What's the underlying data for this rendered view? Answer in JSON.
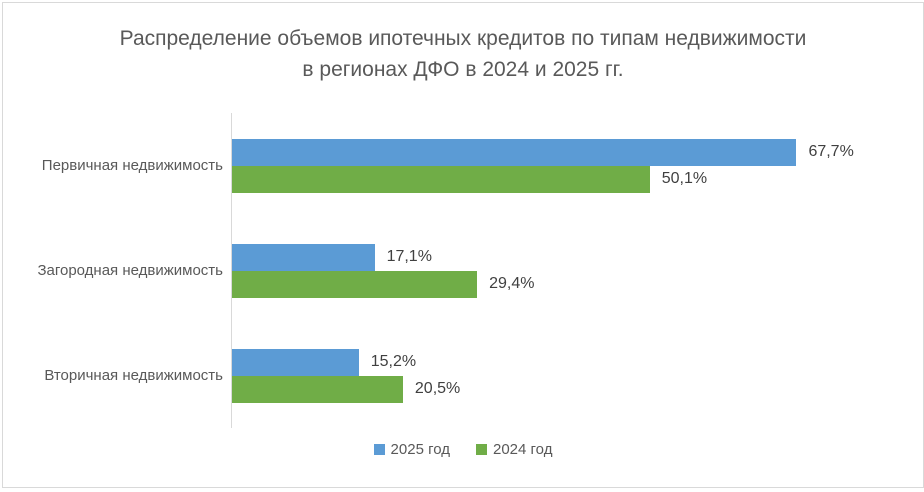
{
  "chart_data": {
    "type": "bar",
    "orientation": "horizontal",
    "title": "Распределение объемов ипотечных кредитов по типам недвижимости в регионах ДФО в 2024 и 2025 гг.",
    "categories": [
      "Первичная недвижимость",
      "Загородная недвижимость",
      "Вторичная недвижимость"
    ],
    "series": [
      {
        "name": "2025 год",
        "color": "#5B9BD5",
        "values": [
          67.7,
          17.1,
          15.2
        ],
        "value_labels": [
          "67,7%",
          "17,1%",
          "15,2%"
        ]
      },
      {
        "name": "2024 год",
        "color": "#70AD47",
        "values": [
          50.1,
          29.4,
          20.5
        ],
        "value_labels": [
          "50,1%",
          "29,4%",
          "20,5%"
        ]
      }
    ],
    "xlim": [
      0,
      80
    ],
    "grid": false,
    "legend_position": "bottom",
    "axis_line_color": "#D9D9D9",
    "title_color": "#595959",
    "category_label_color": "#595959",
    "value_label_color": "#404040"
  }
}
